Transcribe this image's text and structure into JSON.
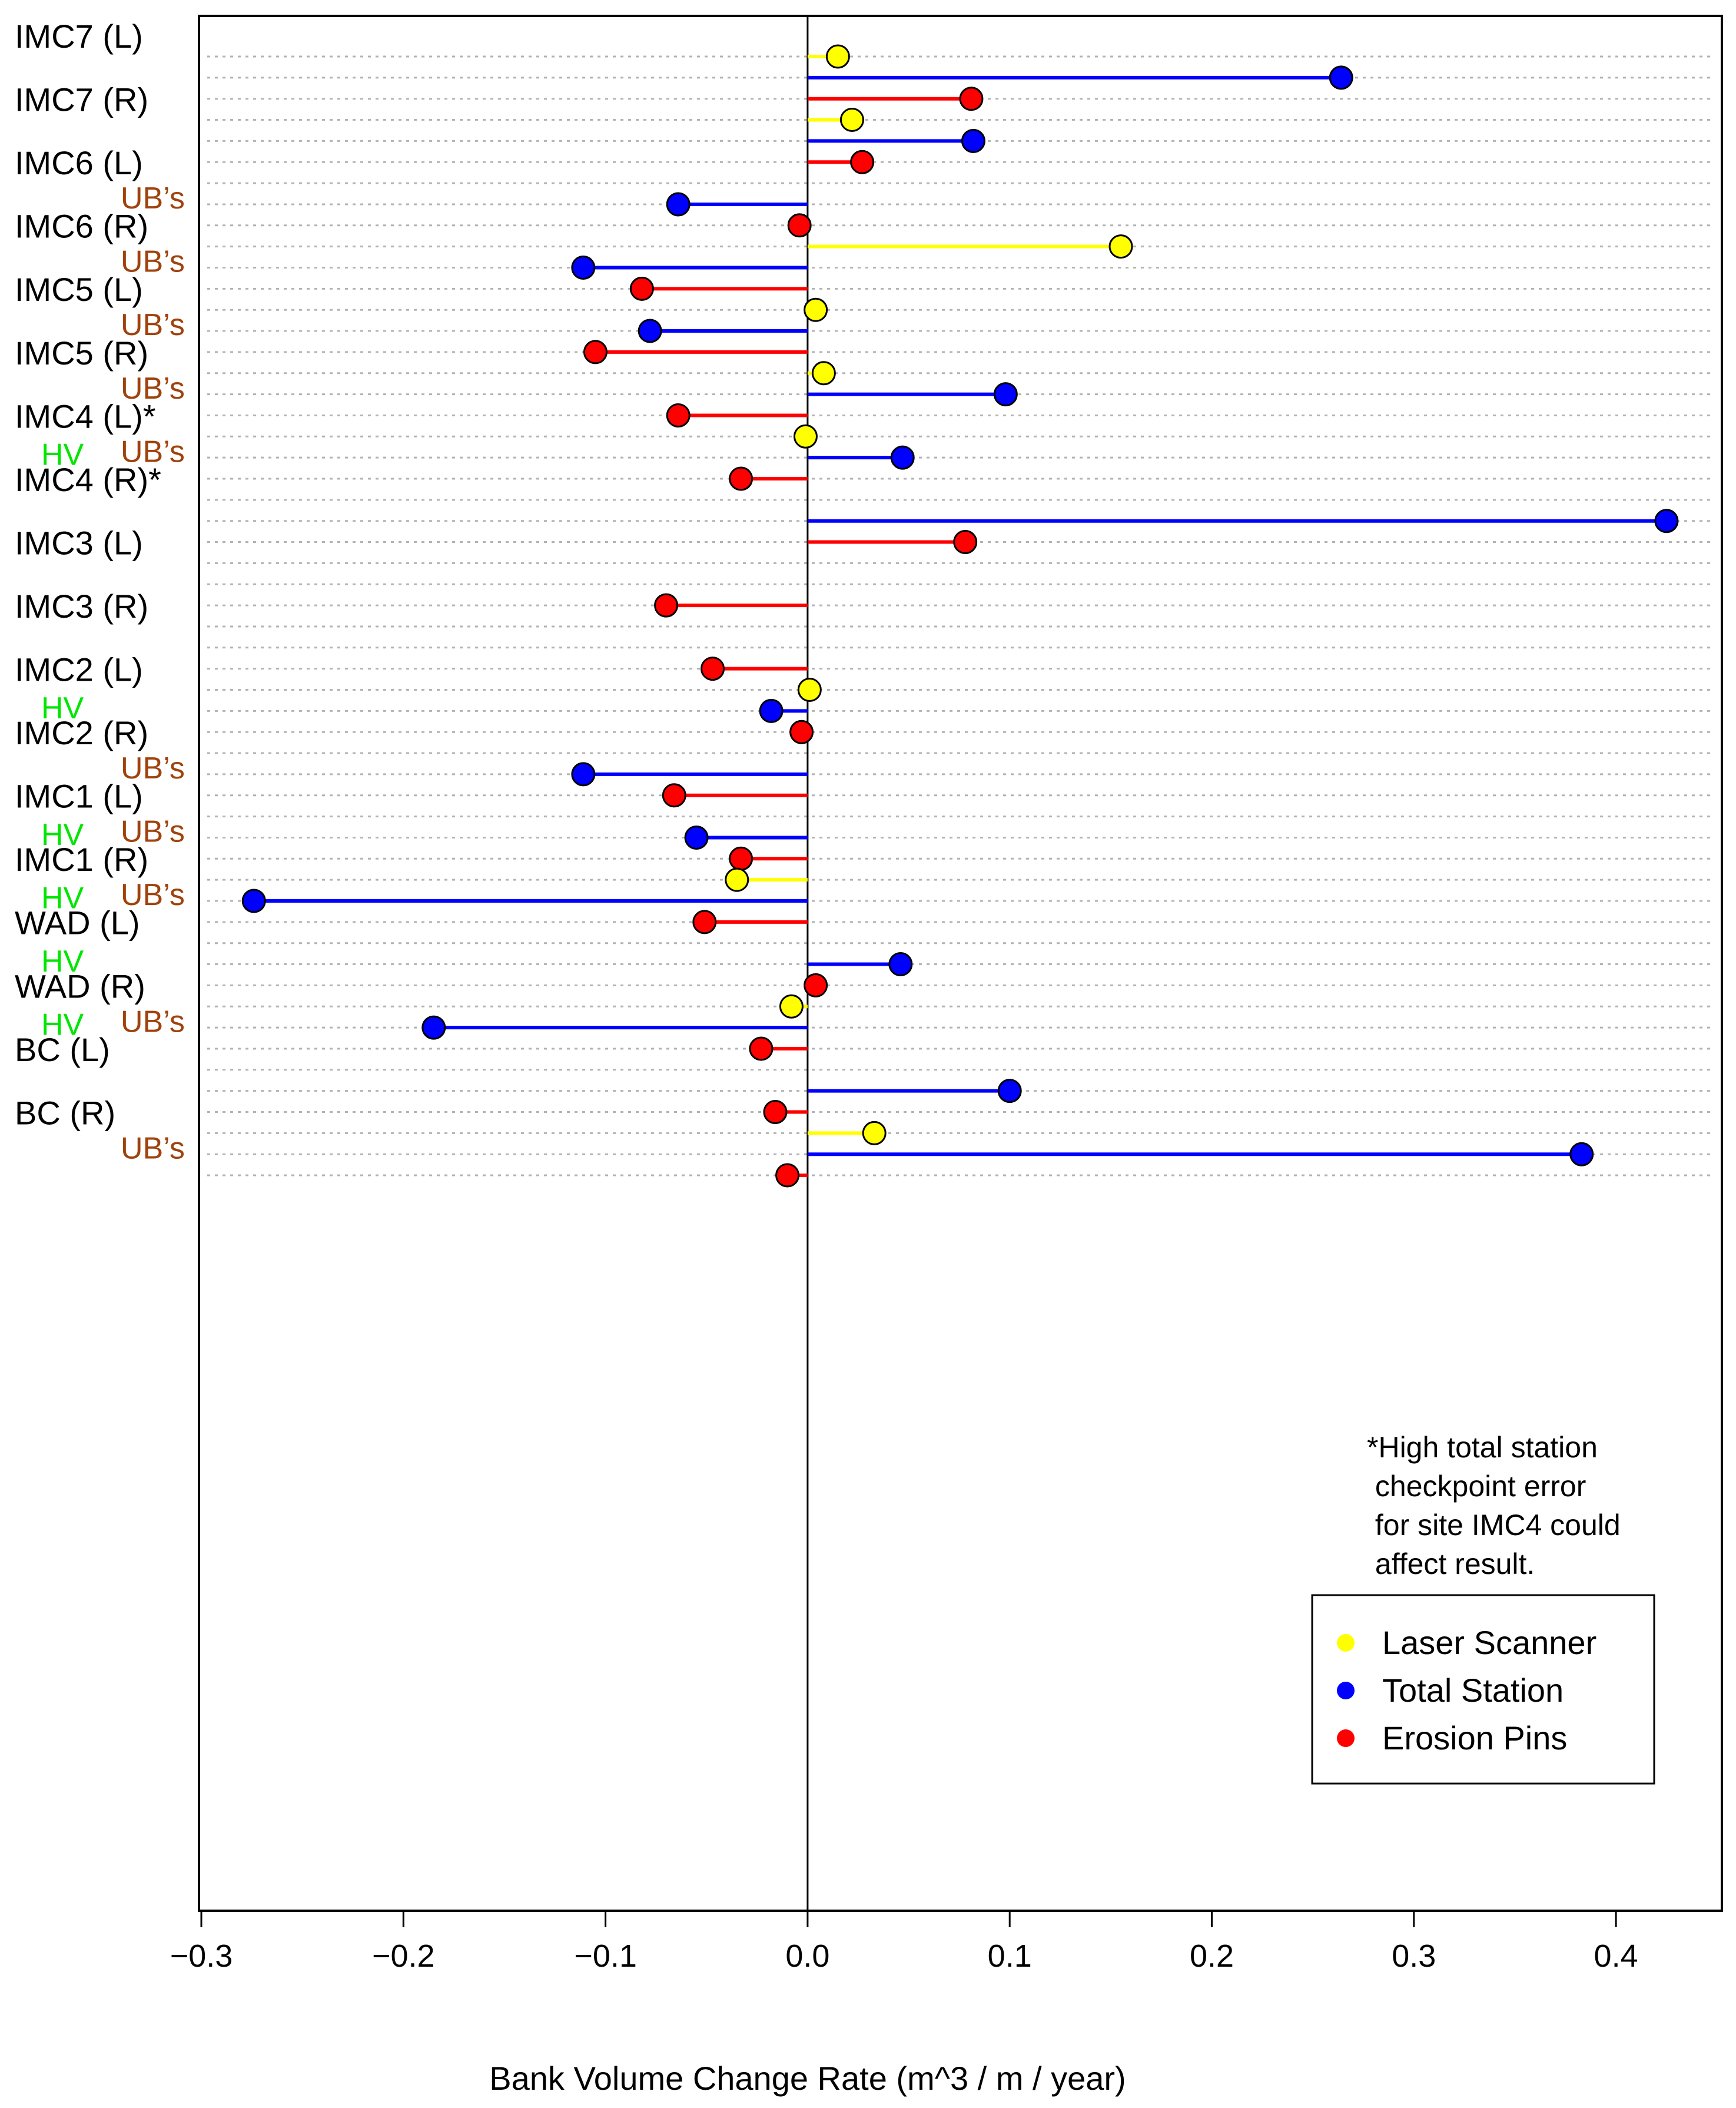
{
  "chart_data": {
    "type": "dot-lollipop",
    "xlabel": "Bank Volume Change Rate (m^3 / m / year)",
    "ylabel": "",
    "xlim": [
      -0.3,
      0.45
    ],
    "x_ticks": [
      "−0.3",
      "−0.2",
      "−0.1",
      "0.0",
      "0.1",
      "0.2",
      "0.3",
      "0.4"
    ],
    "x_tick_values": [
      -0.3,
      -0.2,
      -0.1,
      0.0,
      0.1,
      0.2,
      0.3,
      0.4
    ],
    "grid": "dotted horizontal",
    "legend_position": "bottom-right",
    "series": [
      {
        "name": "Laser Scanner",
        "color": "#ffff00"
      },
      {
        "name": "Total Station",
        "color": "#0000ff"
      },
      {
        "name": "Erosion Pins",
        "color": "#ff0000"
      }
    ],
    "sites": [
      {
        "label": "IMC7 (L)",
        "hv": "",
        "ubs": "",
        "laser": 0.015,
        "total": 0.264,
        "pins": 0.081
      },
      {
        "label": "IMC7 (R)",
        "hv": "",
        "ubs": "",
        "laser": 0.022,
        "total": 0.082,
        "pins": 0.027
      },
      {
        "label": "IMC6 (L)",
        "hv": "",
        "ubs": "UB’s",
        "laser": null,
        "total": -0.064,
        "pins": -0.004
      },
      {
        "label": "IMC6 (R)",
        "hv": "",
        "ubs": "UB’s",
        "laser": 0.155,
        "total": -0.111,
        "pins": -0.082
      },
      {
        "label": "IMC5 (L)",
        "hv": "",
        "ubs": "UB’s",
        "laser": 0.004,
        "total": -0.078,
        "pins": -0.105
      },
      {
        "label": "IMC5 (R)",
        "hv": "",
        "ubs": "UB’s",
        "laser": 0.008,
        "total": 0.098,
        "pins": -0.064
      },
      {
        "label": "IMC4 (L)*",
        "hv": "HV",
        "ubs": "UB’s",
        "laser": -0.001,
        "total": 0.047,
        "pins": -0.033
      },
      {
        "label": "IMC4 (R)*",
        "hv": "",
        "ubs": "",
        "laser": null,
        "total": 0.425,
        "pins": 0.078
      },
      {
        "label": "IMC3 (L)",
        "hv": "",
        "ubs": "",
        "laser": null,
        "total": null,
        "pins": -0.07
      },
      {
        "label": "IMC3 (R)",
        "hv": "",
        "ubs": "",
        "laser": null,
        "total": null,
        "pins": -0.047
      },
      {
        "label": "IMC2 (L)",
        "hv": "HV",
        "ubs": "",
        "laser": 0.001,
        "total": -0.018,
        "pins": -0.003
      },
      {
        "label": "IMC2 (R)",
        "hv": "",
        "ubs": "UB’s",
        "laser": null,
        "total": -0.111,
        "pins": -0.066
      },
      {
        "label": "IMC1 (L)",
        "hv": "HV",
        "ubs": "UB’s",
        "laser": null,
        "total": -0.055,
        "pins": -0.033
      },
      {
        "label": "IMC1 (R)",
        "hv": "HV",
        "ubs": "UB’s",
        "laser": -0.035,
        "total": -0.274,
        "pins": -0.051
      },
      {
        "label": "WAD (L)",
        "hv": "HV",
        "ubs": "",
        "laser": null,
        "total": 0.046,
        "pins": 0.004
      },
      {
        "label": "WAD (R)",
        "hv": "HV",
        "ubs": "UB’s",
        "laser": -0.008,
        "total": -0.185,
        "pins": -0.023
      },
      {
        "label": "BC (L)",
        "hv": "",
        "ubs": "",
        "laser": null,
        "total": 0.1,
        "pins": -0.016
      },
      {
        "label": "BC (R)",
        "hv": "",
        "ubs": "UB’s",
        "laser": 0.033,
        "total": 0.383,
        "pins": -0.01
      }
    ]
  },
  "note_lines": [
    "*High total station",
    " checkpoint error",
    " for site IMC4 could",
    " affect result."
  ],
  "colors": {
    "laser": "#ffff00",
    "total": "#0000ff",
    "pins": "#ff0000",
    "hv": "#00e600",
    "ubs": "#a0420c",
    "grid": "#b3b3b3",
    "axis": "#000000"
  }
}
